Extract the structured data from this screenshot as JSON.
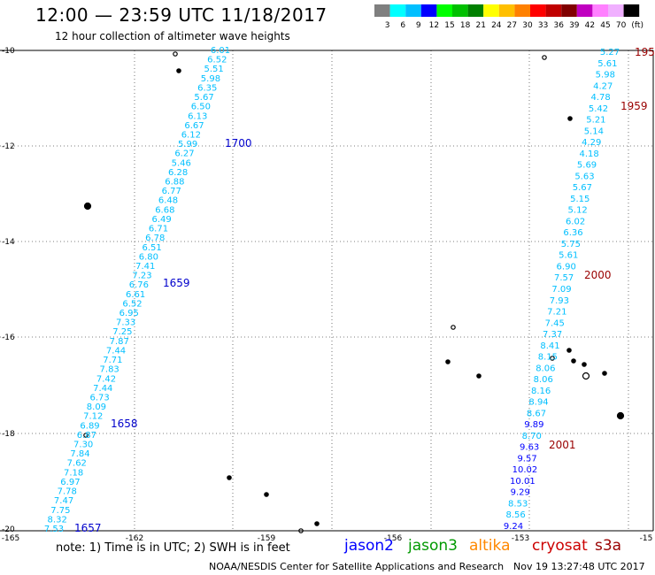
{
  "header": {
    "title": "12:00 — 23:59 UTC 11/18/2017",
    "subtitle": "12 hour collection of altimeter wave heights"
  },
  "colorbar": {
    "labels": [
      "3",
      "6",
      "9",
      "12",
      "15",
      "18",
      "21",
      "24",
      "27",
      "30",
      "33",
      "36",
      "39",
      "42",
      "45",
      "70",
      "(ft)"
    ],
    "colors": [
      "#7f7f7f",
      "#00ffff",
      "#00bfff",
      "#0000ff",
      "#00ff00",
      "#00c000",
      "#008000",
      "#ffff00",
      "#ffbf00",
      "#ff8000",
      "#ff0000",
      "#c00000",
      "#800000",
      "#c000c0",
      "#ff80ff",
      "#f0b0ff",
      "#000000"
    ]
  },
  "axes": {
    "x_ticks": [
      "-165",
      "-162",
      "-159",
      "-156",
      "-153",
      "-15"
    ],
    "y_ticks": [
      "-10",
      "-12",
      "-14",
      "-16",
      "-18",
      "-20"
    ]
  },
  "tracks": {
    "west": {
      "values": [
        "6.01",
        "6.52",
        "5.51",
        "5.98",
        "6.35",
        "5.67",
        "6.50",
        "6.13",
        "6.67",
        "6.12",
        "5.99",
        "6.27",
        "5.46",
        "6.28",
        "6.88",
        "6.77",
        "6.48",
        "6.68",
        "6.49",
        "6.71",
        "6.78",
        "6.51",
        "6.80",
        "7.41",
        "7.23",
        "6.76",
        "6.61",
        "6.52",
        "6.95",
        "7.33",
        "7.25",
        "7.87",
        "7.44",
        "7.71",
        "7.83",
        "7.42",
        "7.44",
        "6.73",
        "8.09",
        "7.12",
        "6.89",
        "6.87",
        "7.30",
        "7.84",
        "7.62",
        "7.18",
        "6.97",
        "7.78",
        "7.47",
        "7.75",
        "8.32",
        "7.53"
      ],
      "times": [
        {
          "label": "1700",
          "color": "#0000cc"
        },
        {
          "label": "1659",
          "color": "#0000cc"
        },
        {
          "label": "1658",
          "color": "#0000cc"
        },
        {
          "label": "1657",
          "color": "#0000cc"
        }
      ]
    },
    "east": {
      "values": [
        "5.27",
        "5.61",
        "5.98",
        "4.27",
        "4.78",
        "5.42",
        "5.21",
        "5.14",
        "4.29",
        "4.18",
        "5.69",
        "5.63",
        "5.67",
        "5.15",
        "5.12",
        "6.02",
        "6.36",
        "5.75",
        "5.61",
        "6.90",
        "7.57",
        "7.09",
        "7.93",
        "7.21",
        "7.45",
        "7.37",
        "8.41",
        "8.15",
        "8.06",
        "8.06",
        "8.16",
        "8.94",
        "8.67",
        "9.89",
        "8.70",
        "9.63",
        "9.57",
        "10.02",
        "10.01",
        "9.29",
        "8.53",
        "8.56",
        "9.24"
      ],
      "colors": [
        "#00bfff",
        "#00bfff",
        "#00bfff",
        "#00bfff",
        "#00bfff",
        "#00bfff",
        "#00bfff",
        "#00bfff",
        "#00bfff",
        "#00bfff",
        "#00bfff",
        "#00bfff",
        "#00bfff",
        "#00bfff",
        "#00bfff",
        "#00bfff",
        "#00bfff",
        "#00bfff",
        "#00bfff",
        "#00bfff",
        "#00bfff",
        "#00bfff",
        "#00bfff",
        "#00bfff",
        "#00bfff",
        "#00bfff",
        "#00bfff",
        "#00bfff",
        "#00bfff",
        "#00bfff",
        "#00bfff",
        "#00bfff",
        "#00bfff",
        "#0000ff",
        "#00bfff",
        "#0000ff",
        "#0000ff",
        "#0000ff",
        "#0000ff",
        "#0000ff",
        "#00bfff",
        "#00bfff",
        "#0000ff"
      ],
      "times": [
        {
          "label": "195",
          "color": "#990000"
        },
        {
          "label": "1959",
          "color": "#990000"
        },
        {
          "label": "2000",
          "color": "#990000"
        },
        {
          "label": "2001",
          "color": "#990000"
        }
      ]
    }
  },
  "footer": {
    "note": "note: 1) Time is in UTC; 2) SWH is in feet",
    "satellites": [
      {
        "name": "jason2",
        "color": "#0000ff"
      },
      {
        "name": "jason3",
        "color": "#009900"
      },
      {
        "name": "altika",
        "color": "#ff8800"
      },
      {
        "name": "cryosat",
        "color": "#cc0000"
      },
      {
        "name": "s3a",
        "color": "#990000"
      }
    ],
    "credit": "NOAA/NESDIS Center for Satellite Applications and Research",
    "timestamp": "Nov 19 13:27:48 UTC 2017"
  }
}
